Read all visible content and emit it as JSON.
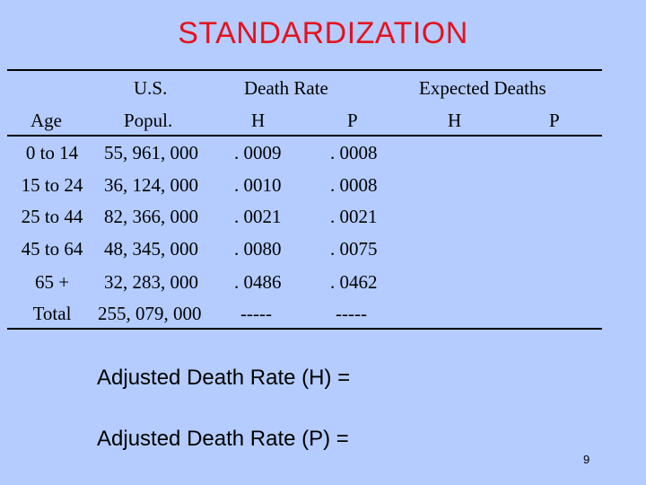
{
  "title": "STANDARDIZATION",
  "header": {
    "us": "U.S.",
    "death_rate": "Death  Rate",
    "expected_deaths": "Expected  Deaths",
    "age": "Age",
    "popul": "Popul.",
    "dr_h": "H",
    "dr_p": "P",
    "ed_h": "H",
    "ed_p": "P"
  },
  "rows": [
    {
      "age": "0 to 14",
      "pop": "55, 961, 000",
      "h": ". 0009",
      "p": ". 0008"
    },
    {
      "age": "15 to 24",
      "pop": "36, 124, 000",
      "h": ". 0010",
      "p": ". 0008"
    },
    {
      "age": "25 to 44",
      "pop": "82, 366, 000",
      "h": ". 0021",
      "p": ". 0021"
    },
    {
      "age": "45 to 64",
      "pop": "48, 345, 000",
      "h": ". 0080",
      "p": ". 0075"
    },
    {
      "age": "65 +",
      "pop": "32, 283, 000",
      "h": ". 0486",
      "p": ". 0462"
    },
    {
      "age": "Total",
      "pop": "255, 079, 000",
      "h": "-----",
      "p": "-----"
    }
  ],
  "adjusted_h": "Adjusted Death Rate (H) =",
  "adjusted_p": "Adjusted Death Rate (P) =",
  "page_number": "9"
}
